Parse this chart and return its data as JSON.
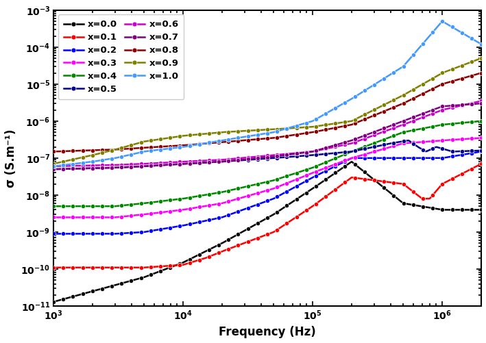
{
  "xlabel": "Frequency (Hz)",
  "ylabel": "σ (S.m⁻¹)",
  "xlim": [
    1000,
    2000000
  ],
  "ylim": [
    1e-11,
    0.001
  ],
  "series": [
    {
      "label": "x=0.0",
      "color": "#000000",
      "pts_x": [
        1000,
        5000,
        10000,
        20000,
        50000,
        100000,
        200000,
        500000,
        1000000,
        2000000
      ],
      "pts_y": [
        1.3e-11,
        6e-11,
        1.5e-10,
        5e-10,
        3e-09,
        1.5e-08,
        8e-08,
        6e-09,
        4e-09,
        4e-09
      ]
    },
    {
      "label": "x=0.1",
      "color": "#ff0000",
      "pts_x": [
        1000,
        5000,
        10000,
        15000,
        20000,
        50000,
        100000,
        200000,
        500000,
        700000,
        800000,
        1000000,
        2000000
      ],
      "pts_y": [
        1.1e-10,
        1.1e-10,
        1.3e-10,
        2e-10,
        3e-10,
        1e-09,
        5e-09,
        3e-08,
        2e-08,
        8e-09,
        8e-09,
        2e-08,
        7e-08
      ]
    },
    {
      "label": "x=0.2",
      "color": "#0000ff",
      "pts_x": [
        1000,
        3000,
        5000,
        10000,
        20000,
        50000,
        100000,
        200000,
        500000,
        1000000,
        2000000
      ],
      "pts_y": [
        9e-10,
        9e-10,
        1e-09,
        1.5e-09,
        2.5e-09,
        8e-09,
        3e-08,
        1e-07,
        1e-07,
        1e-07,
        1.5e-07
      ]
    },
    {
      "label": "x=0.3",
      "color": "#ff00ff",
      "pts_x": [
        1000,
        3000,
        5000,
        10000,
        20000,
        50000,
        100000,
        200000,
        500000,
        1000000,
        2000000
      ],
      "pts_y": [
        2.5e-09,
        2.5e-09,
        3e-09,
        4e-09,
        6e-09,
        1.5e-08,
        4e-08,
        1e-07,
        2.5e-07,
        3e-07,
        3.5e-07
      ]
    },
    {
      "label": "x=0.4",
      "color": "#008800",
      "pts_x": [
        1000,
        3000,
        5000,
        10000,
        20000,
        50000,
        100000,
        200000,
        500000,
        1000000,
        2000000
      ],
      "pts_y": [
        5e-09,
        5e-09,
        6e-09,
        8e-09,
        1.2e-08,
        2.5e-08,
        5.5e-08,
        1.5e-07,
        5e-07,
        8e-07,
        1e-06
      ]
    },
    {
      "label": "x=0.5",
      "color": "#00008b",
      "pts_x": [
        1000,
        3000,
        5000,
        10000,
        20000,
        50000,
        100000,
        200000,
        400000,
        550000,
        650000,
        750000,
        900000,
        1200000,
        2000000
      ],
      "pts_y": [
        5e-08,
        5.5e-08,
        6e-08,
        7e-08,
        8e-08,
        1e-07,
        1.2e-07,
        1.5e-07,
        2.5e-07,
        3e-07,
        2e-07,
        1.5e-07,
        2e-07,
        1.5e-07,
        1.6e-07
      ]
    },
    {
      "label": "x=0.6",
      "color": "#cc00cc",
      "pts_x": [
        1000,
        3000,
        5000,
        10000,
        20000,
        50000,
        100000,
        200000,
        500000,
        1000000,
        2000000
      ],
      "pts_y": [
        6e-08,
        6.5e-08,
        7e-08,
        8e-08,
        9e-08,
        1.2e-07,
        1.5e-07,
        2.5e-07,
        8e-07,
        2e-06,
        3.5e-06
      ]
    },
    {
      "label": "x=0.7",
      "color": "#800080",
      "pts_x": [
        1000,
        3000,
        5000,
        10000,
        20000,
        50000,
        100000,
        200000,
        500000,
        1000000,
        2000000
      ],
      "pts_y": [
        5e-08,
        5.5e-08,
        6e-08,
        7e-08,
        8e-08,
        1.1e-07,
        1.5e-07,
        3e-07,
        1e-06,
        2.5e-06,
        3e-06
      ]
    },
    {
      "label": "x=0.8",
      "color": "#8b0000",
      "pts_x": [
        1000,
        3000,
        5000,
        10000,
        20000,
        50000,
        100000,
        200000,
        500000,
        1000000,
        2000000
      ],
      "pts_y": [
        1.5e-07,
        1.7e-07,
        1.9e-07,
        2.2e-07,
        2.7e-07,
        3.5e-07,
        5e-07,
        8e-07,
        3e-06,
        1e-05,
        2e-05
      ]
    },
    {
      "label": "x=0.9",
      "color": "#808000",
      "pts_x": [
        1000,
        2000,
        3000,
        5000,
        10000,
        20000,
        50000,
        100000,
        200000,
        500000,
        1000000,
        2000000
      ],
      "pts_y": [
        7e-08,
        1.2e-07,
        1.7e-07,
        2.8e-07,
        4e-07,
        5e-07,
        6e-07,
        7e-07,
        1e-06,
        5e-06,
        2e-05,
        5e-05
      ]
    },
    {
      "label": "x=1.0",
      "color": "#4499ff",
      "pts_x": [
        1000,
        2000,
        3000,
        5000,
        10000,
        20000,
        50000,
        100000,
        200000,
        500000,
        1000000,
        2000000
      ],
      "pts_y": [
        6e-08,
        8e-08,
        1e-07,
        1.5e-07,
        2e-07,
        3e-07,
        5e-07,
        1e-06,
        4e-06,
        3e-05,
        0.0005,
        0.00012
      ]
    }
  ]
}
